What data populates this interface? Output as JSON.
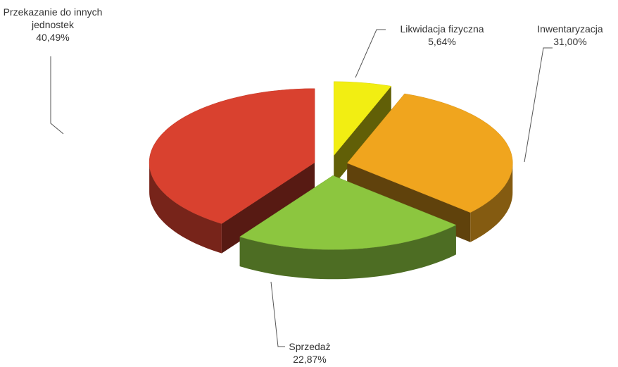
{
  "chart_data": {
    "type": "pie3d",
    "categories": [
      "Likwidacja fizyczna",
      "Inwentaryzacja",
      "Sprzedaż",
      "Przekazanie do innych jednostek"
    ],
    "values": [
      5.64,
      31.0,
      22.87,
      40.49
    ],
    "value_labels": [
      "5,64%",
      "31,00%",
      "22,87%",
      "40,49%"
    ],
    "colors": [
      "#f2ee12",
      "#f0a51e",
      "#8cc63f",
      "#d9412f"
    ]
  }
}
